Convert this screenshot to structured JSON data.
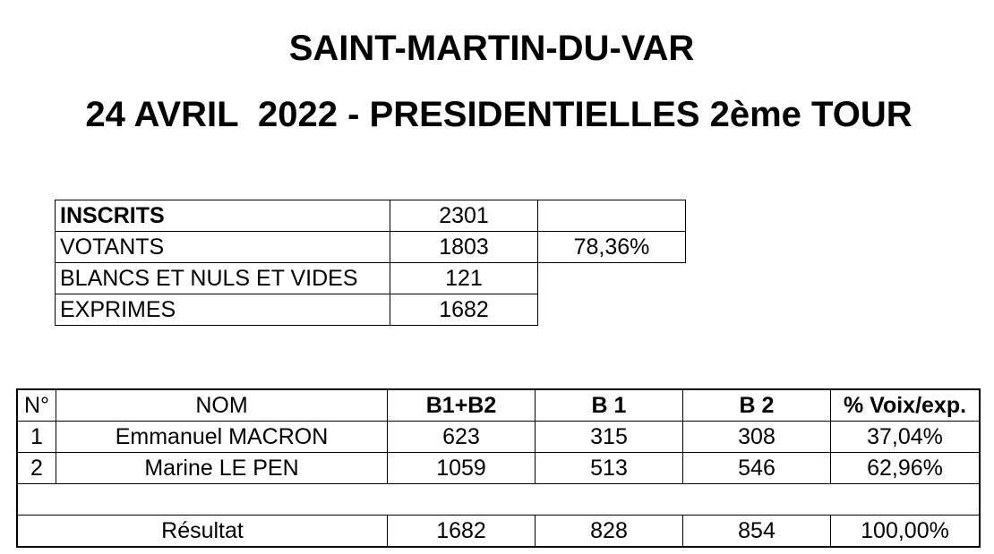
{
  "header": {
    "commune": "SAINT-MARTIN-DU-VAR",
    "election": "24 AVRIL  2022 - PRESIDENTIELLES 2ème TOUR"
  },
  "summary": {
    "rows": [
      {
        "label": "INSCRITS",
        "value": "2301",
        "percent": ""
      },
      {
        "label": "VOTANTS",
        "value": "1803",
        "percent": "78,36%"
      },
      {
        "label": "BLANCS ET NULS ET VIDES",
        "value": "121"
      },
      {
        "label": "EXPRIMES",
        "value": "1682"
      }
    ]
  },
  "results": {
    "headers": {
      "no": "N°",
      "nom": "NOM",
      "b1b2": "B1+B2",
      "b1": "B 1",
      "b2": "B 2",
      "pct": "% Voix/exp."
    },
    "candidates": [
      {
        "no": "1",
        "nom": "Emmanuel MACRON",
        "b1b2": "623",
        "b1": "315",
        "b2": "308",
        "pct": "37,04%"
      },
      {
        "no": "2",
        "nom": "Marine LE PEN",
        "b1b2": "1059",
        "b1": "513",
        "b2": "546",
        "pct": "62,96%"
      }
    ],
    "total": {
      "label": "Résultat",
      "b1b2": "1682",
      "b1": "828",
      "b2": "854",
      "pct": "100,00%"
    }
  }
}
